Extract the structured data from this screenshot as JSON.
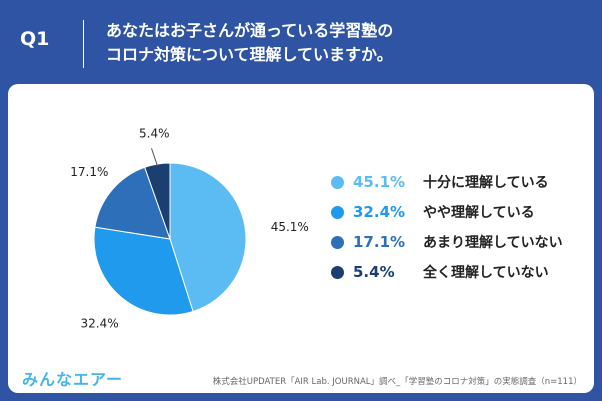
{
  "header": {
    "question_label": "Q1",
    "title_line1": "あなたはお子さんが通っている学習塾の",
    "title_line2": "コロナ対策について理解していますか。"
  },
  "colors": {
    "background": "#2f54a3",
    "series": [
      "#5bbcf3",
      "#1f9aec",
      "#2e6fba",
      "#1b3f70"
    ]
  },
  "chart_data": {
    "type": "pie",
    "title": "あなたはお子さんが通っている学習塾のコロナ対策について理解していますか。",
    "categories": [
      "十分に理解している",
      "やや理解している",
      "あまり理解していない",
      "全く理解していない"
    ],
    "values": [
      45.1,
      32.4,
      17.1,
      5.4
    ],
    "labels": [
      "45.1%",
      "32.4%",
      "17.1%",
      "5.4%"
    ],
    "legend_position": "right"
  },
  "footer": {
    "logo": "みんなエアー",
    "source": "株式会社UPDATER「AIR Lab. JOURNAL」調べ_「学習塾のコロナ対策」の実態調査（n=111）"
  }
}
